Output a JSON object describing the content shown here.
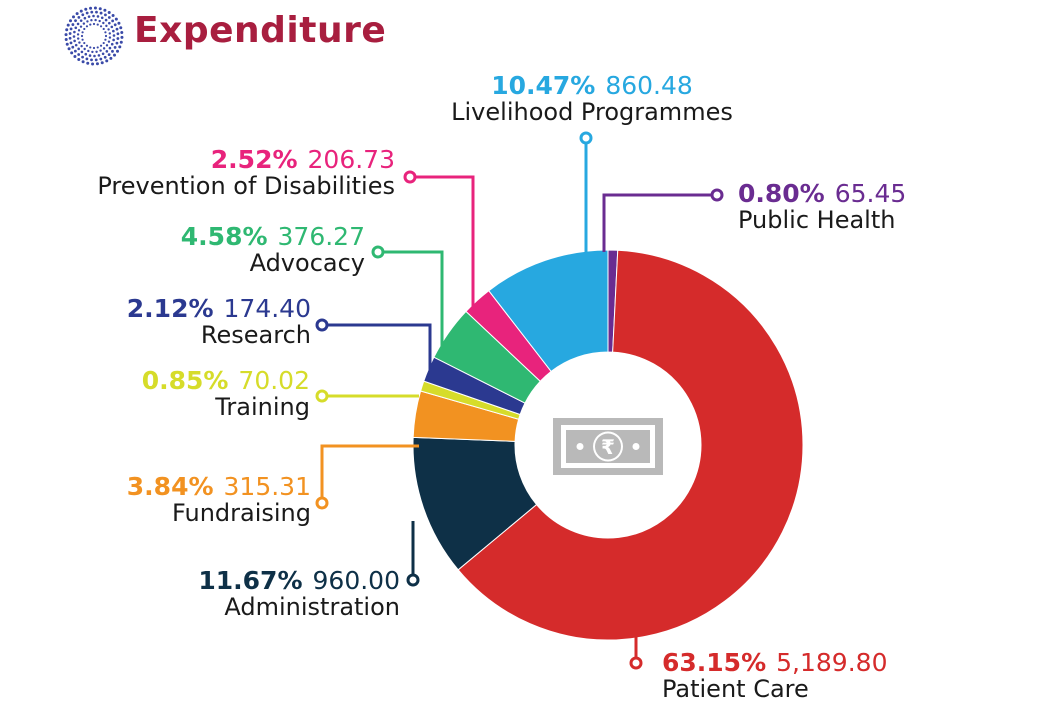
{
  "header": {
    "title": "Expenditure",
    "logo_icon": "radial-dots-logo"
  },
  "center_icon": "rupee-banknote-icon",
  "chart_data": {
    "type": "pie",
    "variant": "donut",
    "title": "Expenditure",
    "slices": [
      {
        "key": "public_health",
        "label": "Public Health",
        "percent_text": "0.80%",
        "amount_text": "65.45",
        "value": 65.45,
        "color": "#6a2c91"
      },
      {
        "key": "patient_care",
        "label": "Patient Care",
        "percent_text": "63.15%",
        "amount_text": "5,189.80",
        "value": 5189.8,
        "color": "#d52b2b"
      },
      {
        "key": "administration",
        "label": "Administration",
        "percent_text": "11.67%",
        "amount_text": "960.00",
        "value": 960.0,
        "color": "#0e3047"
      },
      {
        "key": "fundraising",
        "label": "Fundraising",
        "percent_text": "3.84%",
        "amount_text": "315.31",
        "value": 315.31,
        "color": "#f29221"
      },
      {
        "key": "training",
        "label": "Training",
        "percent_text": "0.85%",
        "amount_text": "70.02",
        "value": 70.02,
        "color": "#d6dc2a"
      },
      {
        "key": "research",
        "label": "Research",
        "percent_text": "2.12%",
        "amount_text": "174.40",
        "value": 174.4,
        "color": "#2b3990"
      },
      {
        "key": "advocacy",
        "label": "Advocacy",
        "percent_text": "4.58%",
        "amount_text": "376.27",
        "value": 376.27,
        "color": "#2fb872"
      },
      {
        "key": "prevention",
        "label": "Prevention of Disabilities",
        "percent_text": "2.52%",
        "amount_text": "206.73",
        "value": 206.73,
        "color": "#e8237c"
      },
      {
        "key": "livelihood",
        "label": "Livelihood Programmes",
        "percent_text": "10.47%",
        "amount_text": "860.48",
        "value": 860.48,
        "color": "#27a8e0"
      }
    ]
  }
}
